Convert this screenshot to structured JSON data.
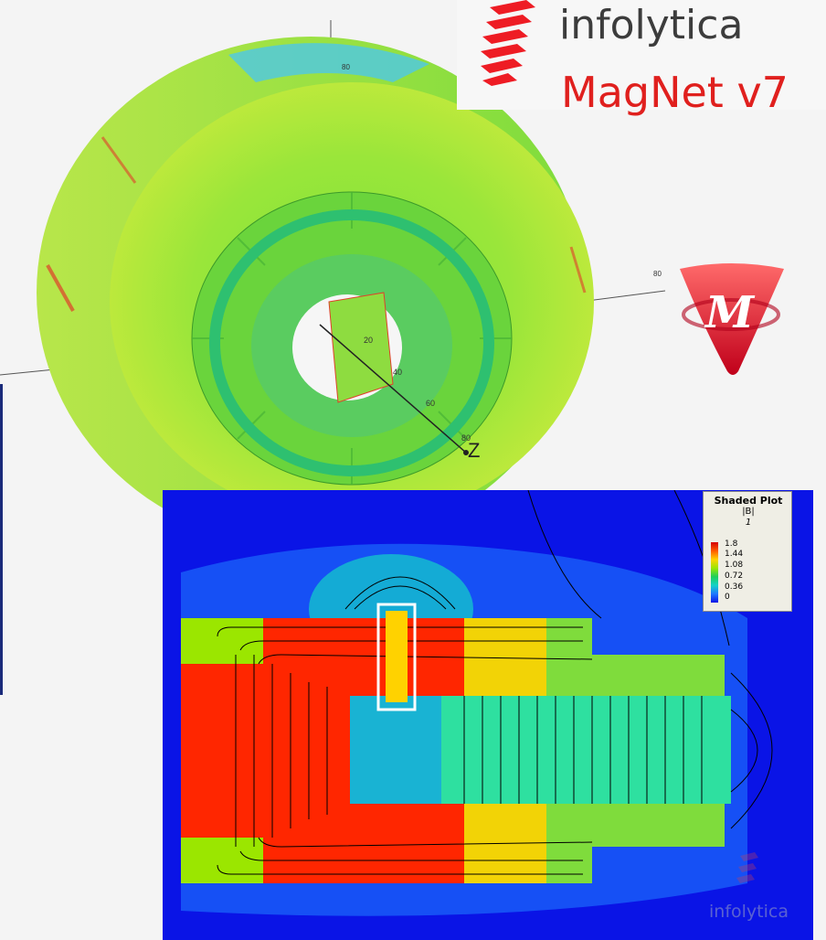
{
  "brand": {
    "company": "infolytica",
    "product": "MagNet v7",
    "logo_icon": "striped-parallelogram-logo",
    "app_icon": "magnet-m-triangle-icon",
    "accent_color": "#e0201e"
  },
  "model_view": {
    "axis_labels": {
      "z": "Z"
    },
    "tick_labels": [
      "20",
      "40",
      "60",
      "80",
      "80",
      "80"
    ]
  },
  "shaded_plot": {
    "legend": {
      "title": "Shaded Plot",
      "quantity": "|B|",
      "index": "1",
      "ticks": [
        "1.8",
        "1.44",
        "1.08",
        "0.72",
        "0.36",
        "0"
      ]
    },
    "watermark": "infolytica"
  }
}
